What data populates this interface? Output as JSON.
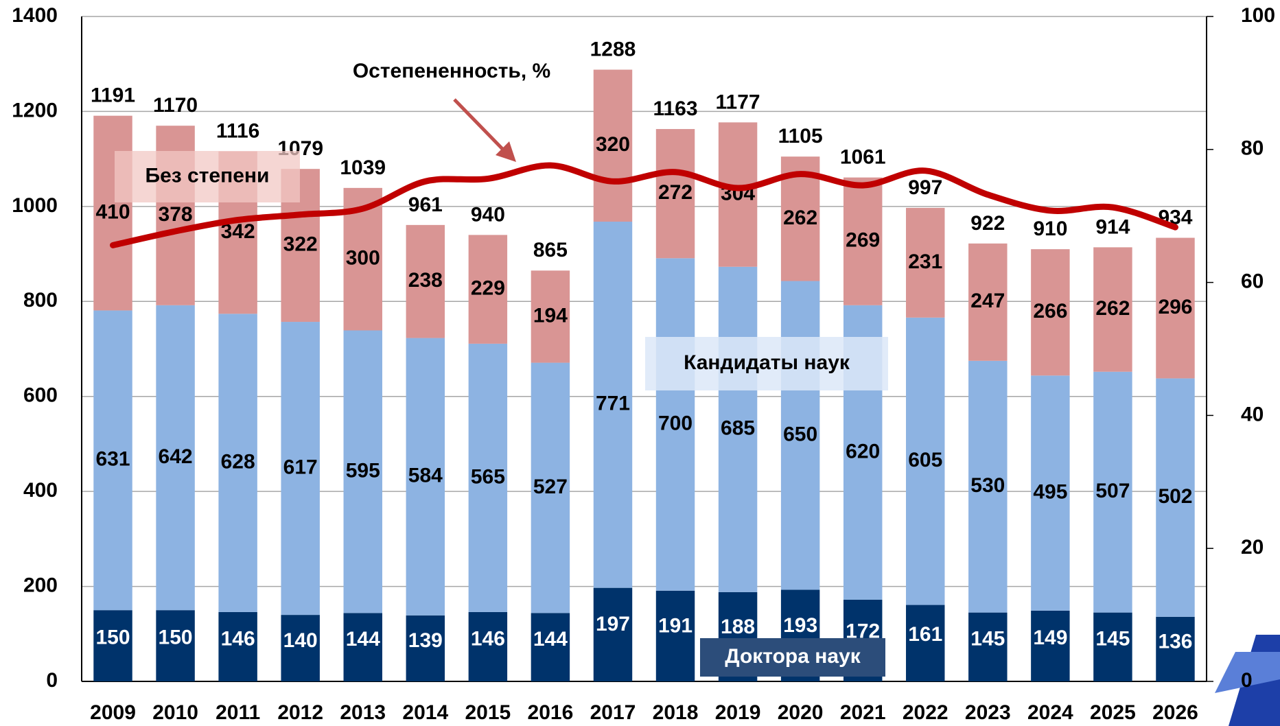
{
  "chart_data": {
    "type": "bar",
    "stacked": true,
    "categories": [
      "2009",
      "2010",
      "2011",
      "2012",
      "2013",
      "2014",
      "2015",
      "2016",
      "2017",
      "2018",
      "2019",
      "2020",
      "2021",
      "2022",
      "2023",
      "2024",
      "2025",
      "2026"
    ],
    "series": [
      {
        "name": "Доктора наук",
        "color": "#00336b",
        "label_color": "#ffffff",
        "values": [
          150,
          150,
          146,
          140,
          144,
          139,
          146,
          144,
          197,
          191,
          188,
          193,
          172,
          161,
          145,
          149,
          145,
          136
        ]
      },
      {
        "name": "Кандидаты наук",
        "color": "#8db3e2",
        "label_color": "#000000",
        "values": [
          631,
          642,
          628,
          617,
          595,
          584,
          565,
          527,
          771,
          700,
          685,
          650,
          620,
          605,
          530,
          495,
          507,
          502
        ]
      },
      {
        "name": "Без степени",
        "color": "#d99594",
        "label_color": "#000000",
        "values": [
          410,
          378,
          342,
          322,
          300,
          238,
          229,
          194,
          320,
          272,
          304,
          262,
          269,
          231,
          247,
          266,
          262,
          296
        ]
      },
      {
        "name": "Остепененность, %",
        "type": "line",
        "axis": "y2",
        "color": "#c00000",
        "values": [
          65.6,
          67.7,
          69.4,
          70.2,
          71.1,
          75.2,
          75.6,
          77.6,
          75.2,
          76.6,
          74.2,
          76.3,
          74.6,
          76.8,
          73.2,
          70.8,
          71.3,
          68.3
        ]
      }
    ],
    "totals": [
      1191,
      1170,
      1116,
      1079,
      1039,
      961,
      940,
      865,
      1288,
      1163,
      1177,
      1105,
      1061,
      997,
      922,
      910,
      914,
      934
    ],
    "ylim": [
      0,
      1400
    ],
    "yticks": [
      0,
      200,
      400,
      600,
      800,
      1000,
      1200,
      1400
    ],
    "y2lim": [
      0,
      100
    ],
    "y2ticks": [
      0,
      20,
      40,
      60,
      80,
      100
    ],
    "grid": true
  }
}
